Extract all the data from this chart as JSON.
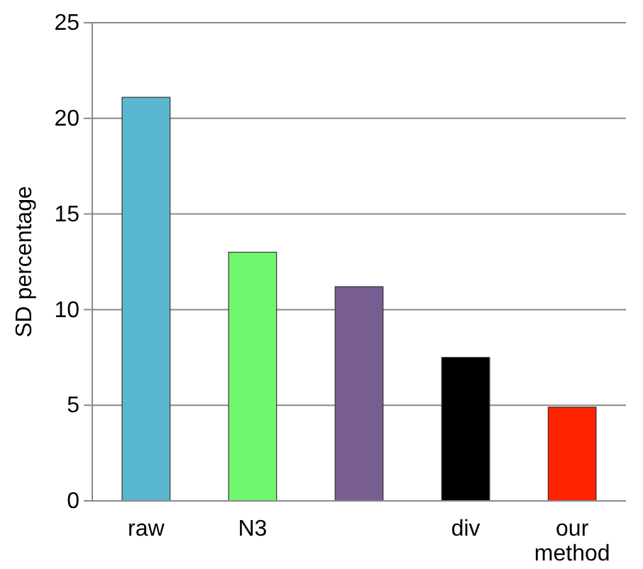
{
  "chart_data": {
    "type": "bar",
    "ylabel": "SD percentage",
    "categories": [
      "raw",
      "N3",
      null,
      "div",
      "our method"
    ],
    "values": [
      21.1,
      13,
      11.2,
      7.5,
      4.9
    ],
    "colors": [
      "#5ab7d0",
      "#6ff86e",
      "#775d92",
      "#000000",
      "#ff2200"
    ],
    "ylim": [
      0,
      25
    ],
    "yticks": [
      0,
      5,
      10,
      15,
      20,
      25
    ],
    "grid": "y"
  }
}
